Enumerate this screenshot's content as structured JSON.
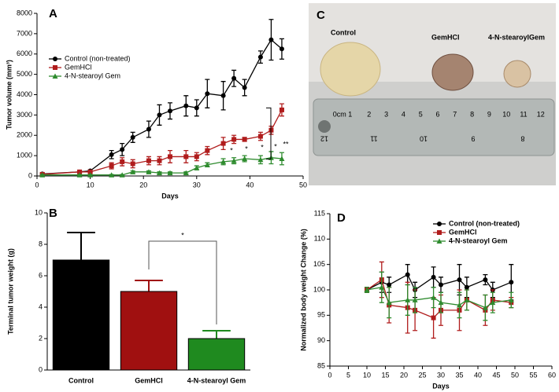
{
  "chart_data": [
    {
      "type": "line",
      "panel_label": "A",
      "x_label": "Days",
      "y_label": "Tumor volume (mm³)",
      "x": [
        1,
        8,
        10,
        14,
        16,
        18,
        21,
        23,
        25,
        28,
        30,
        32,
        35,
        37,
        39,
        42,
        44,
        46
      ],
      "series": [
        {
          "name": "Control (non-treated)",
          "color": "#000000",
          "marker": "circle",
          "values": [
            100,
            200,
            250,
            1050,
            1300,
            1900,
            2300,
            3000,
            3200,
            3450,
            3350,
            4050,
            3950,
            4800,
            4350,
            5850,
            6700,
            6250
          ],
          "errors": [
            50,
            50,
            50,
            200,
            300,
            250,
            400,
            500,
            400,
            500,
            400,
            700,
            700,
            400,
            400,
            300,
            1000,
            500
          ]
        },
        {
          "name": "GemHCl",
          "color": "#b01c1c",
          "marker": "square",
          "values": [
            80,
            200,
            200,
            500,
            700,
            600,
            750,
            750,
            950,
            950,
            950,
            1250,
            1600,
            1800,
            1800,
            1950,
            2250,
            3250
          ],
          "errors": [
            30,
            50,
            50,
            150,
            200,
            200,
            200,
            200,
            300,
            300,
            200,
            200,
            300,
            200,
            100,
            200,
            200,
            300
          ]
        },
        {
          "name": "4-N-stearoyl Gem",
          "color": "#2e8b2e",
          "marker": "triangle",
          "values": [
            50,
            50,
            50,
            50,
            50,
            200,
            200,
            150,
            150,
            150,
            400,
            550,
            700,
            750,
            850,
            800,
            900,
            850
          ],
          "errors": [
            20,
            20,
            20,
            20,
            20,
            50,
            50,
            50,
            50,
            50,
            100,
            100,
            150,
            150,
            150,
            200,
            300,
            300
          ]
        }
      ],
      "xlim": [
        0,
        50
      ],
      "xticks": [
        0,
        10,
        20,
        30,
        40,
        50
      ],
      "ylim": [
        0,
        8000
      ],
      "yticks": [
        0,
        1000,
        2000,
        3000,
        4000,
        5000,
        6000,
        7000,
        8000
      ],
      "annotations": [
        "*",
        "*",
        "*",
        "*",
        "**"
      ],
      "legend": "upper-left"
    },
    {
      "type": "bar",
      "panel_label": "B",
      "y_label": "Terminal tumor weight (g)",
      "categories": [
        "Control",
        "GemHCl",
        "4-N-stearoyl Gem"
      ],
      "values": [
        7,
        5,
        2
      ],
      "errors": [
        1.75,
        0.7,
        0.5
      ],
      "colors": [
        "#000000",
        "#a01010",
        "#1f8a1f"
      ],
      "ylim": [
        0,
        10
      ],
      "yticks": [
        0,
        2,
        4,
        6,
        8,
        10
      ],
      "annotations": [
        "*"
      ]
    },
    {
      "type": "line",
      "panel_label": "D",
      "x_label": "Days",
      "y_label": "Normalized body weight Change (%)",
      "x": [
        10,
        14,
        16,
        21,
        23,
        28,
        30,
        35,
        37,
        42,
        44,
        49
      ],
      "series": [
        {
          "name": "Control (non-treated)",
          "color": "#000000",
          "marker": "circle",
          "values": [
            100,
            101.5,
            101,
            103,
            100,
            102.5,
            101,
            102,
            100.5,
            102,
            100,
            101.5
          ],
          "errors": [
            0.5,
            2,
            1.5,
            2,
            1.5,
            2,
            1.5,
            3,
            2,
            1,
            1.5,
            3.5
          ]
        },
        {
          "name": "GemHCl",
          "color": "#b01c1c",
          "marker": "square",
          "values": [
            100,
            102,
            97,
            96.5,
            96,
            94.5,
            96,
            96,
            98,
            96,
            98,
            97.5
          ],
          "errors": [
            0.5,
            3.5,
            3.5,
            5,
            4,
            4,
            3,
            4,
            2,
            3,
            2,
            1
          ]
        },
        {
          "name": "4-N-stearoyl Gem",
          "color": "#2e8b2e",
          "marker": "triangle",
          "values": [
            100,
            100.5,
            97.5,
            98,
            98,
            98.5,
            97.5,
            97,
            98,
            96.5,
            97.5,
            98
          ],
          "errors": [
            0.5,
            3,
            3,
            3,
            2.5,
            2,
            2,
            2.5,
            2,
            2.5,
            2,
            1.5
          ]
        }
      ],
      "xlim": [
        0,
        60
      ],
      "xticks": [
        0,
        5,
        10,
        15,
        20,
        25,
        30,
        35,
        40,
        45,
        50,
        55,
        60
      ],
      "ylim": [
        85,
        115
      ],
      "yticks": [
        85,
        90,
        95,
        100,
        105,
        110,
        115
      ],
      "legend": "upper-right"
    }
  ],
  "photo": {
    "label": "C",
    "captions": [
      "Control",
      "GemHCl",
      "4-N-stearoylGem"
    ],
    "ruler_top": [
      "0cm 1",
      "2",
      "3",
      "4",
      "5",
      "6",
      "7",
      "8",
      "9",
      "10",
      "11",
      "12"
    ],
    "ruler_bottom": [
      "12",
      "11",
      "10",
      "9",
      "8"
    ]
  }
}
